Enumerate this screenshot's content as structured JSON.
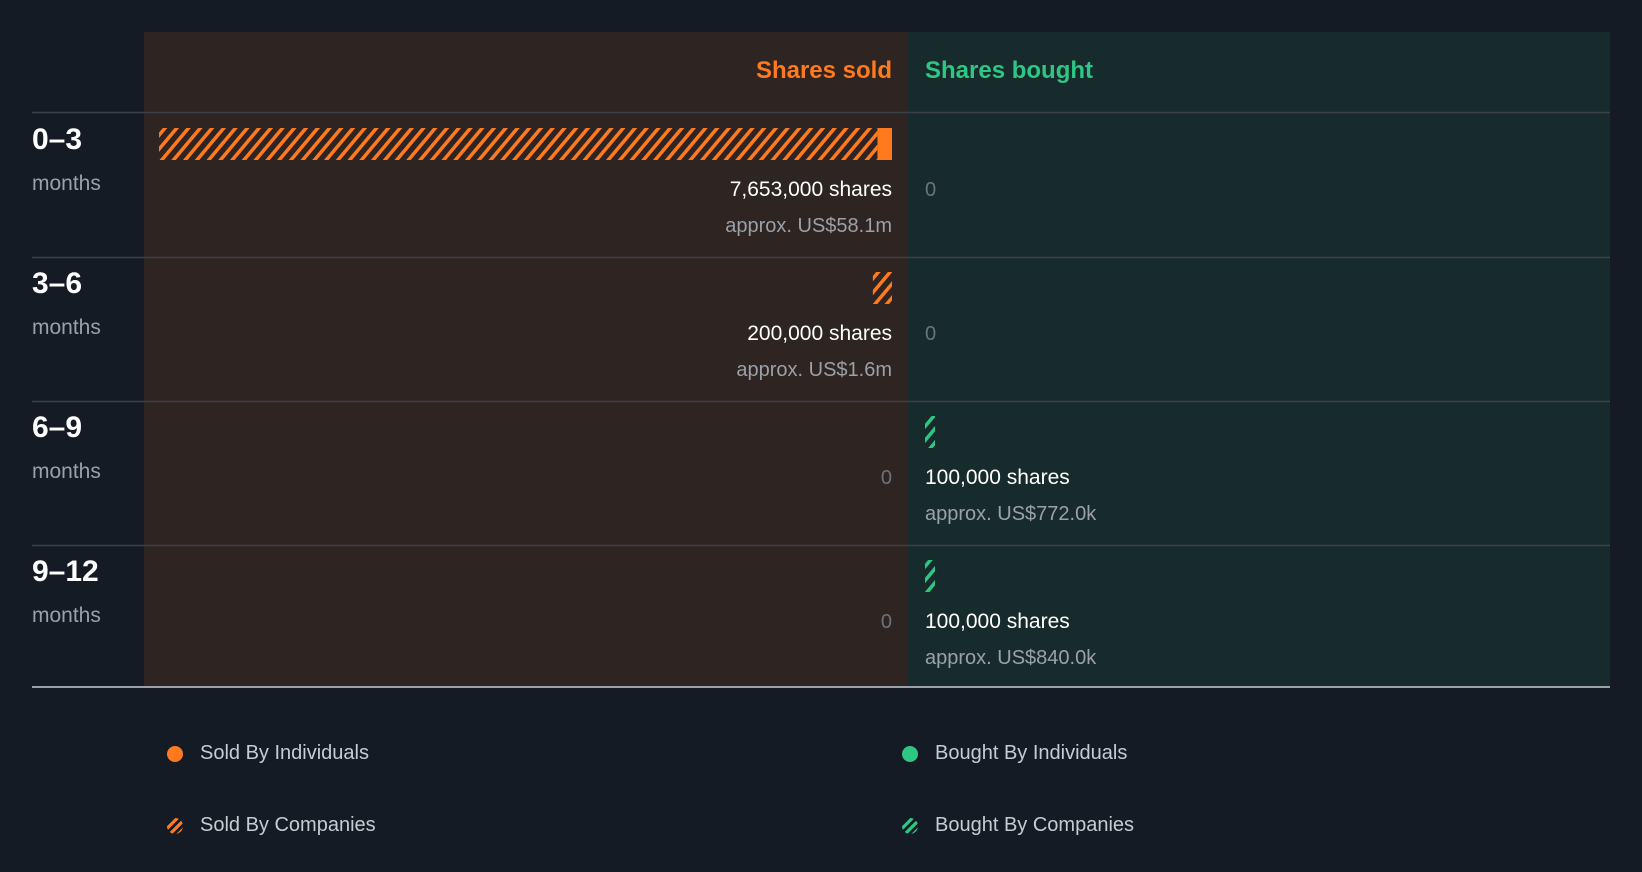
{
  "chart_data": {
    "type": "bar",
    "title": "",
    "columns": {
      "sold_label": "Shares sold",
      "bought_label": "Shares bought"
    },
    "unit_label": "shares",
    "zero_label": "0",
    "colors": {
      "sold": "#ff7a1f",
      "bought": "#2dc783",
      "sold_bg": "#2e2422",
      "bought_bg": "#182b2c",
      "page_bg": "#141b24"
    },
    "rows": [
      {
        "period": "0–3",
        "unit": "months",
        "sold": {
          "individuals": 153000,
          "companies": 7500000,
          "shares_text": "7,653,000 shares",
          "value_text": "approx. US$58.1m"
        },
        "bought": {
          "individuals": 0,
          "companies": 0,
          "shares_text": "0",
          "value_text": ""
        }
      },
      {
        "period": "3–6",
        "unit": "months",
        "sold": {
          "individuals": 0,
          "companies": 200000,
          "shares_text": "200,000 shares",
          "value_text": "approx. US$1.6m"
        },
        "bought": {
          "individuals": 0,
          "companies": 0,
          "shares_text": "0",
          "value_text": ""
        }
      },
      {
        "period": "6–9",
        "unit": "months",
        "sold": {
          "individuals": 0,
          "companies": 0,
          "shares_text": "0",
          "value_text": ""
        },
        "bought": {
          "individuals": 0,
          "companies": 100000,
          "shares_text": "100,000 shares",
          "value_text": "approx. US$772.0k"
        }
      },
      {
        "period": "9–12",
        "unit": "months",
        "sold": {
          "individuals": 0,
          "companies": 0,
          "shares_text": "0",
          "value_text": ""
        },
        "bought": {
          "individuals": 0,
          "companies": 100000,
          "shares_text": "100,000 shares",
          "value_text": "approx. US$840.0k"
        }
      }
    ],
    "legend": [
      {
        "key": "sold-individuals",
        "label": "Sold By Individuals"
      },
      {
        "key": "bought-individuals",
        "label": "Bought By Individuals"
      },
      {
        "key": "sold-companies",
        "label": "Sold By Companies"
      },
      {
        "key": "bought-companies",
        "label": "Bought By Companies"
      }
    ]
  }
}
